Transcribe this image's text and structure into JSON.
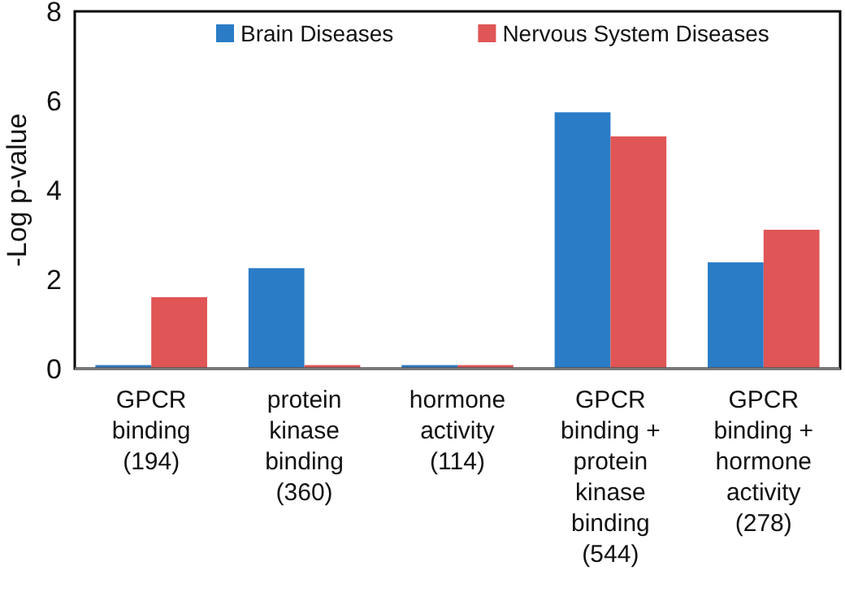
{
  "chart_data": {
    "type": "bar",
    "ylabel": "-Log p-value",
    "categories": [
      "GPCR\nbinding\n(194)",
      "protein\nkinase\nbinding\n(360)",
      "hormone\nactivity\n(114)",
      "GPCR\nbinding +\nprotein\nkinase\nbinding\n(544)",
      "GPCR\nbinding +\nhormone\nactivity\n(278)"
    ],
    "series": [
      {
        "name": "Brain Diseases",
        "color": "#2a7cc7",
        "values": [
          0.08,
          2.25,
          0.08,
          5.74,
          2.38
        ]
      },
      {
        "name": "Nervous System Diseases",
        "color": "#e05555",
        "values": [
          1.6,
          0.08,
          0.08,
          5.2,
          3.11
        ]
      }
    ],
    "ylim": [
      0,
      8
    ],
    "yticks": [
      0,
      2,
      4,
      6,
      8
    ],
    "grid": false,
    "legend": "top"
  }
}
